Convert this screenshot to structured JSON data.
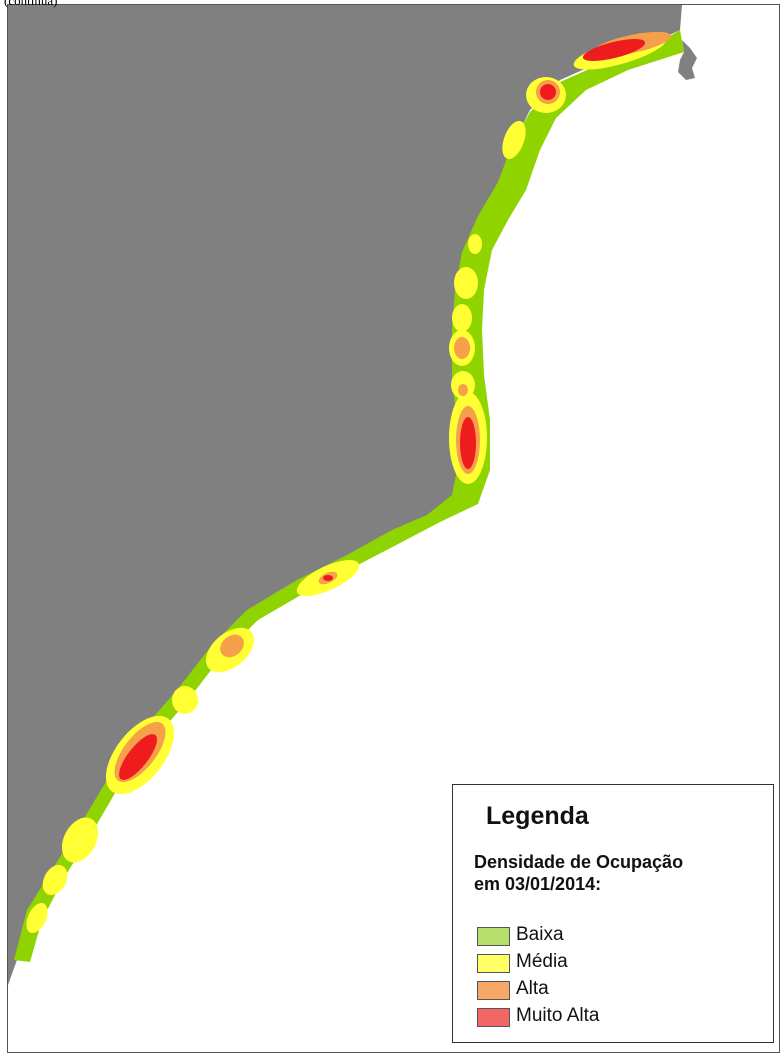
{
  "header": {
    "clipped_label": "(continua)"
  },
  "map": {
    "land_color": "#808080",
    "sea_color": "#ffffff",
    "density_colors": {
      "baixa": "#8fd400",
      "media": "#ffff33",
      "alta": "#f5a04a",
      "muito_alta": "#ee1c1c"
    }
  },
  "legend": {
    "title": "Legenda",
    "subtitle": "Densidade de Ocupação\nem 03/01/2014:",
    "items": [
      {
        "label": "Baixa",
        "color": "#b6e06e"
      },
      {
        "label": "Média",
        "color": "#ffff66"
      },
      {
        "label": "Alta",
        "color": "#f7a866"
      },
      {
        "label": "Muito Alta",
        "color": "#f26666"
      }
    ]
  }
}
